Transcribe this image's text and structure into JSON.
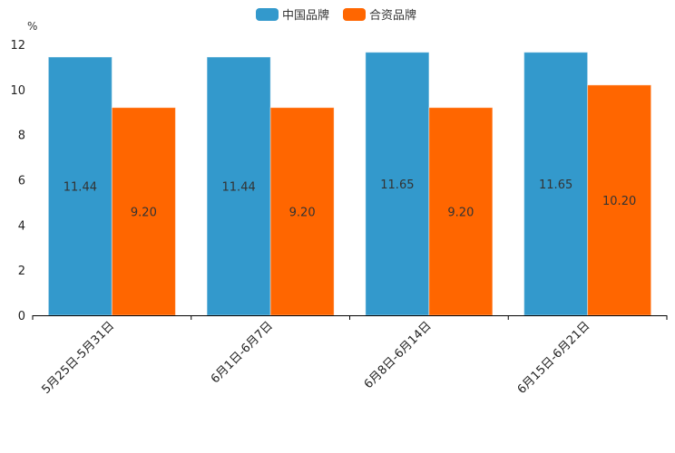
{
  "chart_data": {
    "type": "bar",
    "title": "",
    "xlabel": "",
    "ylabel": "%",
    "ylim": [
      0,
      12
    ],
    "yticks": [
      0,
      2,
      4,
      6,
      8,
      10,
      12
    ],
    "grid": false,
    "legend_position": "top-center",
    "categories": [
      "5月25日-5月31日",
      "6月1日-6月7日",
      "6月8日-6月14日",
      "6月15日-6月21日"
    ],
    "series": [
      {
        "name": "中国品牌",
        "color": "#3399CC",
        "values": [
          11.44,
          11.44,
          11.65,
          11.65
        ],
        "labels": [
          "11.44",
          "11.44",
          "11.65",
          "11.65"
        ]
      },
      {
        "name": "合资品牌",
        "color": "#FF6600",
        "values": [
          9.2,
          9.2,
          9.2,
          10.2
        ],
        "labels": [
          "9.20",
          "9.20",
          "9.20",
          "10.20"
        ]
      }
    ]
  }
}
